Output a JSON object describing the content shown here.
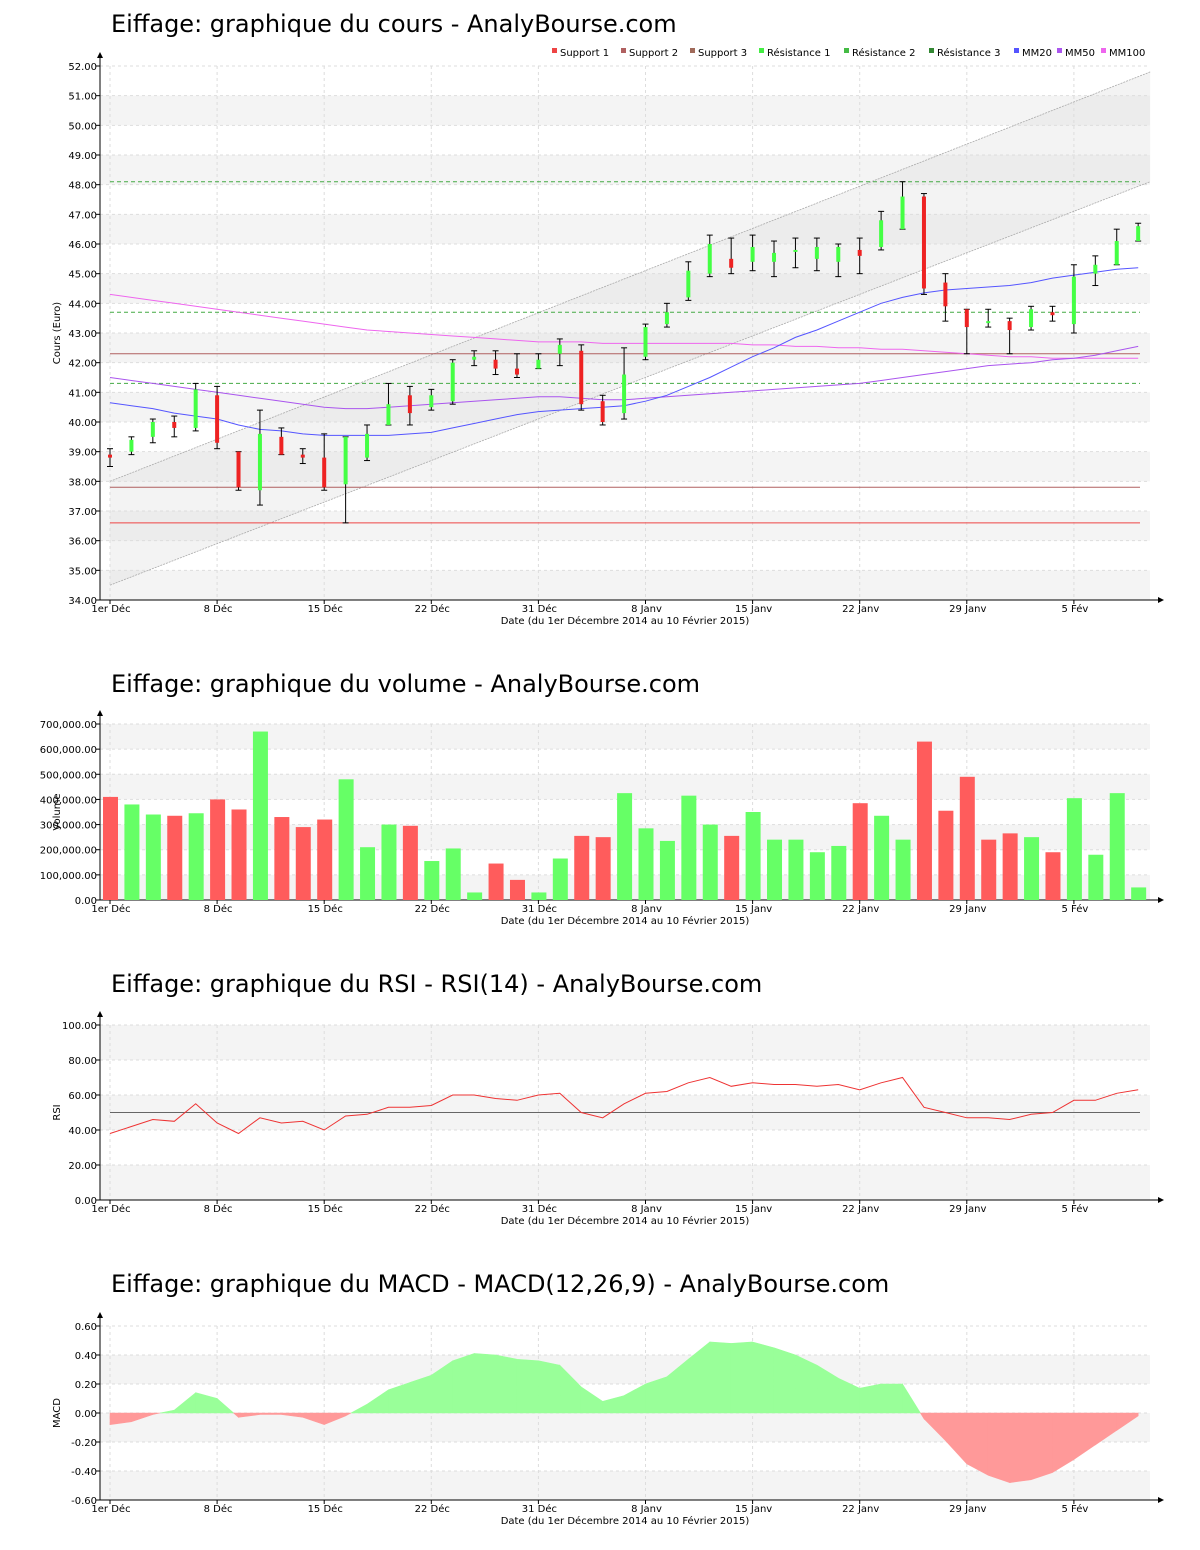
{
  "charts": [
    {
      "title": "Eiffage: graphique du cours - AnalyBourse.com"
    },
    {
      "title": "Eiffage: graphique du volume - AnalyBourse.com"
    },
    {
      "title": "Eiffage: graphique du RSI - RSI(14) - AnalyBourse.com"
    },
    {
      "title": "Eiffage: graphique du MACD - MACD(12,26,9) - AnalyBourse.com"
    }
  ],
  "colors": {
    "up": "#44ff44",
    "down": "#ee2222",
    "vol_up": "#66ff66",
    "vol_down": "#ff5c5c",
    "support": "#b06060",
    "support1": "#ee4444",
    "resistance": "#44aa44",
    "mm20": "#5555ff",
    "mm50": "#aa55ee",
    "mm100": "#ee66ee",
    "rsi": "#ee3333",
    "macd_pos": "#99ff99",
    "macd_neg": "#ff9999"
  },
  "chart_data": [
    {
      "type": "candlestick",
      "title": "Eiffage: graphique du cours - AnalyBourse.com",
      "xlabel": "Date (du 1er Décembre 2014 au 10 Février 2015)",
      "ylabel": "Cours (Euro)",
      "ylim": [
        34,
        52
      ],
      "yticks": [
        "34.00",
        "35.00",
        "36.00",
        "37.00",
        "38.00",
        "39.00",
        "40.00",
        "41.00",
        "42.00",
        "43.00",
        "44.00",
        "45.00",
        "46.00",
        "47.00",
        "48.00",
        "49.00",
        "50.00",
        "51.00",
        "52.00"
      ],
      "xtick_labels": [
        {
          "label": "1er Déc",
          "index": 0
        },
        {
          "label": "8 Déc",
          "index": 5
        },
        {
          "label": "15 Déc",
          "index": 10
        },
        {
          "label": "22 Déc",
          "index": 15
        },
        {
          "label": "31 Déc",
          "index": 20
        },
        {
          "label": "8 Janv",
          "index": 25
        },
        {
          "label": "15 Janv",
          "index": 30
        },
        {
          "label": "22 Janv",
          "index": 35
        },
        {
          "label": "29 Janv",
          "index": 40
        },
        {
          "label": "5 Fév",
          "index": 45
        }
      ],
      "legend": [
        {
          "name": "Support 1",
          "color": "#ee4444"
        },
        {
          "name": "Support 2",
          "color": "#b06060"
        },
        {
          "name": "Support 3",
          "color": "#a06a5a"
        },
        {
          "name": "Résistance 1",
          "color": "#44ee44"
        },
        {
          "name": "Résistance 2",
          "color": "#44bb44"
        },
        {
          "name": "Résistance 3",
          "color": "#338833"
        },
        {
          "name": "MM20",
          "color": "#5555ff"
        },
        {
          "name": "MM50",
          "color": "#aa55ee"
        },
        {
          "name": "MM100",
          "color": "#ee66ee"
        }
      ],
      "legend_position": "top-right",
      "supports": [
        36.6,
        37.8,
        42.3
      ],
      "resistances": [
        41.3,
        43.7,
        48.1
      ],
      "channel": {
        "upper": [
          38.0,
          51.8
        ],
        "lower": [
          34.5,
          48.1
        ]
      },
      "candles": [
        [
          38.9,
          38.8,
          39.1,
          38.5
        ],
        [
          39.0,
          39.4,
          39.5,
          38.9
        ],
        [
          39.5,
          40.0,
          40.1,
          39.3
        ],
        [
          40.0,
          39.8,
          40.2,
          39.5
        ],
        [
          39.8,
          41.1,
          41.3,
          39.7
        ],
        [
          40.9,
          39.3,
          41.2,
          39.1
        ],
        [
          39.0,
          37.8,
          39.0,
          37.7
        ],
        [
          37.7,
          39.6,
          40.4,
          37.2
        ],
        [
          39.5,
          38.9,
          39.8,
          38.9
        ],
        [
          38.9,
          38.8,
          39.1,
          38.6
        ],
        [
          38.8,
          37.8,
          39.6,
          37.7
        ],
        [
          37.9,
          39.5,
          39.5,
          36.6
        ],
        [
          38.8,
          39.6,
          39.9,
          38.7
        ],
        [
          39.9,
          40.6,
          41.3,
          39.9
        ],
        [
          40.9,
          40.3,
          41.2,
          39.9
        ],
        [
          40.5,
          40.9,
          41.1,
          40.4
        ],
        [
          40.7,
          42.0,
          42.1,
          40.6
        ],
        [
          42.1,
          42.2,
          42.4,
          41.9
        ],
        [
          42.1,
          41.8,
          42.4,
          41.6
        ],
        [
          41.8,
          41.6,
          42.3,
          41.5
        ],
        [
          41.8,
          42.1,
          42.3,
          41.8
        ],
        [
          42.3,
          42.6,
          42.8,
          41.9
        ],
        [
          42.4,
          40.6,
          42.6,
          40.4
        ],
        [
          40.7,
          40.0,
          40.9,
          39.9
        ],
        [
          40.3,
          41.6,
          42.5,
          40.1
        ],
        [
          42.2,
          43.2,
          43.3,
          42.1
        ],
        [
          43.3,
          43.7,
          44.0,
          43.2
        ],
        [
          44.2,
          45.1,
          45.4,
          44.1
        ],
        [
          45.0,
          46.0,
          46.3,
          44.9
        ],
        [
          45.5,
          45.2,
          46.2,
          45.0
        ],
        [
          45.4,
          45.9,
          46.3,
          45.1
        ],
        [
          45.4,
          45.7,
          46.1,
          44.9
        ],
        [
          45.8,
          45.8,
          46.2,
          45.2
        ],
        [
          45.5,
          45.9,
          46.2,
          45.1
        ],
        [
          45.4,
          45.9,
          46.0,
          44.9
        ],
        [
          45.8,
          45.6,
          46.2,
          45.0
        ],
        [
          45.9,
          46.8,
          47.1,
          45.8
        ],
        [
          46.5,
          47.6,
          48.1,
          46.5
        ],
        [
          47.6,
          44.5,
          47.7,
          44.3
        ],
        [
          44.7,
          43.9,
          45.0,
          43.4
        ],
        [
          43.8,
          43.2,
          43.8,
          42.3
        ],
        [
          43.4,
          43.4,
          43.8,
          43.2
        ],
        [
          43.4,
          43.1,
          43.5,
          42.3
        ],
        [
          43.2,
          43.8,
          43.9,
          43.1
        ],
        [
          43.7,
          43.6,
          43.9,
          43.4
        ],
        [
          43.3,
          44.9,
          45.3,
          43.0
        ],
        [
          45.0,
          45.3,
          45.6,
          44.6
        ],
        [
          45.3,
          46.1,
          46.5,
          45.3
        ],
        [
          46.1,
          46.6,
          46.7,
          46.1
        ]
      ],
      "mm20": [
        40.65,
        40.55,
        40.45,
        40.3,
        40.2,
        40.1,
        39.9,
        39.75,
        39.7,
        39.6,
        39.55,
        39.55,
        39.55,
        39.55,
        39.6,
        39.65,
        39.8,
        39.95,
        40.1,
        40.25,
        40.35,
        40.4,
        40.45,
        40.5,
        40.55,
        40.7,
        40.9,
        41.2,
        41.5,
        41.85,
        42.2,
        42.5,
        42.85,
        43.1,
        43.4,
        43.7,
        44.0,
        44.2,
        44.35,
        44.45,
        44.5,
        44.55,
        44.6,
        44.7,
        44.85,
        44.95,
        45.05,
        45.15,
        45.2
      ],
      "mm50": [
        41.5,
        41.4,
        41.3,
        41.2,
        41.1,
        41.0,
        40.9,
        40.8,
        40.7,
        40.6,
        40.5,
        40.45,
        40.45,
        40.5,
        40.55,
        40.6,
        40.65,
        40.7,
        40.75,
        40.8,
        40.85,
        40.85,
        40.8,
        40.75,
        40.75,
        40.8,
        40.85,
        40.9,
        40.95,
        41.0,
        41.05,
        41.1,
        41.15,
        41.2,
        41.25,
        41.3,
        41.4,
        41.5,
        41.6,
        41.7,
        41.8,
        41.9,
        41.95,
        42.0,
        42.1,
        42.15,
        42.25,
        42.4,
        42.55
      ],
      "mm100": [
        44.3,
        44.2,
        44.1,
        44.0,
        43.9,
        43.8,
        43.7,
        43.6,
        43.5,
        43.4,
        43.3,
        43.2,
        43.1,
        43.05,
        43.0,
        42.95,
        42.9,
        42.85,
        42.8,
        42.75,
        42.7,
        42.7,
        42.7,
        42.65,
        42.65,
        42.65,
        42.65,
        42.65,
        42.65,
        42.65,
        42.6,
        42.6,
        42.55,
        42.55,
        42.5,
        42.5,
        42.45,
        42.45,
        42.4,
        42.35,
        42.3,
        42.25,
        42.2,
        42.2,
        42.15,
        42.15,
        42.15,
        42.15,
        42.15
      ]
    },
    {
      "type": "bar",
      "title": "Eiffage: graphique du volume - AnalyBourse.com",
      "xlabel": "Date (du 1er Décembre 2014 au 10 Février 2015)",
      "ylabel": "Volume",
      "ylim": [
        0,
        700000
      ],
      "yticks": [
        "0.00",
        "100,000.00",
        "200,000.00",
        "300,000.00",
        "400,000.00",
        "500,000.00",
        "600,000.00",
        "700,000.00"
      ],
      "xtick_labels": [
        {
          "label": "1er Déc",
          "index": 0
        },
        {
          "label": "8 Déc",
          "index": 5
        },
        {
          "label": "15 Déc",
          "index": 10
        },
        {
          "label": "22 Déc",
          "index": 15
        },
        {
          "label": "31 Déc",
          "index": 20
        },
        {
          "label": "8 Janv",
          "index": 25
        },
        {
          "label": "15 Janv",
          "index": 30
        },
        {
          "label": "22 Janv",
          "index": 35
        },
        {
          "label": "29 Janv",
          "index": 40
        },
        {
          "label": "5 Fév",
          "index": 45
        }
      ],
      "values": [
        410000,
        380000,
        340000,
        335000,
        345000,
        400000,
        360000,
        670000,
        330000,
        290000,
        320000,
        480000,
        210000,
        300000,
        295000,
        155000,
        205000,
        30000,
        145000,
        80000,
        30000,
        165000,
        255000,
        250000,
        425000,
        285000,
        235000,
        415000,
        300000,
        255000,
        350000,
        240000,
        240000,
        190000,
        215000,
        385000,
        335000,
        240000,
        630000,
        355000,
        490000,
        240000,
        265000,
        250000,
        190000,
        405000,
        180000,
        425000,
        50000
      ],
      "up": [
        false,
        true,
        true,
        false,
        true,
        false,
        false,
        true,
        false,
        false,
        false,
        true,
        true,
        true,
        false,
        true,
        true,
        true,
        false,
        false,
        true,
        true,
        false,
        false,
        true,
        true,
        true,
        true,
        true,
        false,
        true,
        true,
        true,
        true,
        true,
        false,
        true,
        true,
        false,
        false,
        false,
        false,
        false,
        true,
        false,
        true,
        true,
        true,
        true
      ]
    },
    {
      "type": "line",
      "title": "Eiffage: graphique du RSI - RSI(14) - AnalyBourse.com",
      "xlabel": "Date (du 1er Décembre 2014 au 10 Février 2015)",
      "ylabel": "RSI",
      "ylim": [
        0,
        100
      ],
      "yticks": [
        "0.00",
        "20.00",
        "40.00",
        "60.00",
        "80.00",
        "100.00"
      ],
      "xtick_labels": [
        {
          "label": "1er Déc",
          "index": 0
        },
        {
          "label": "8 Déc",
          "index": 5
        },
        {
          "label": "15 Déc",
          "index": 10
        },
        {
          "label": "22 Déc",
          "index": 15
        },
        {
          "label": "31 Déc",
          "index": 20
        },
        {
          "label": "8 Janv",
          "index": 25
        },
        {
          "label": "15 Janv",
          "index": 30
        },
        {
          "label": "22 Janv",
          "index": 35
        },
        {
          "label": "29 Janv",
          "index": 40
        },
        {
          "label": "5 Fév",
          "index": 45
        }
      ],
      "reference_line": 50,
      "values": [
        38,
        42,
        46,
        45,
        55,
        44,
        38,
        47,
        44,
        45,
        40,
        48,
        49,
        53,
        53,
        54,
        60,
        60,
        58,
        57,
        60,
        61,
        50,
        47,
        55,
        61,
        62,
        67,
        70,
        65,
        67,
        66,
        66,
        65,
        66,
        63,
        67,
        70,
        53,
        50,
        47,
        47,
        46,
        49,
        50,
        57,
        57,
        61,
        63
      ]
    },
    {
      "type": "area",
      "title": "Eiffage: graphique du MACD - MACD(12,26,9) - AnalyBourse.com",
      "xlabel": "Date (du 1er Décembre 2014 au 10 Février 2015)",
      "ylabel": "MACD",
      "ylim": [
        -0.6,
        0.6
      ],
      "yticks": [
        "-0.60",
        "-0.40",
        "-0.20",
        "0.00",
        "0.20",
        "0.40",
        "0.60"
      ],
      "xtick_labels": [
        {
          "label": "1er Déc",
          "index": 0
        },
        {
          "label": "8 Déc",
          "index": 5
        },
        {
          "label": "15 Déc",
          "index": 10
        },
        {
          "label": "22 Déc",
          "index": 15
        },
        {
          "label": "31 Déc",
          "index": 20
        },
        {
          "label": "8 Janv",
          "index": 25
        },
        {
          "label": "15 Janv",
          "index": 30
        },
        {
          "label": "22 Janv",
          "index": 35
        },
        {
          "label": "29 Janv",
          "index": 40
        },
        {
          "label": "5 Fév",
          "index": 45
        }
      ],
      "values": [
        -0.08,
        -0.06,
        -0.01,
        0.02,
        0.14,
        0.1,
        -0.03,
        -0.01,
        -0.01,
        -0.03,
        -0.08,
        -0.02,
        0.06,
        0.16,
        0.21,
        0.26,
        0.36,
        0.41,
        0.4,
        0.37,
        0.36,
        0.33,
        0.18,
        0.08,
        0.12,
        0.2,
        0.25,
        0.37,
        0.49,
        0.48,
        0.49,
        0.45,
        0.4,
        0.33,
        0.24,
        0.17,
        0.2,
        0.2,
        -0.04,
        -0.19,
        -0.35,
        -0.43,
        -0.48,
        -0.46,
        -0.41,
        -0.32,
        -0.22,
        -0.12,
        -0.02
      ]
    }
  ]
}
